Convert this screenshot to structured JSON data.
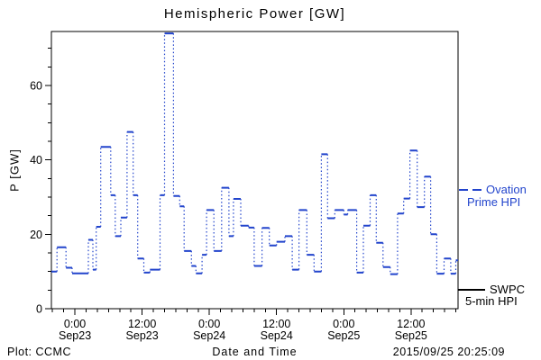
{
  "title": "Hemispheric Power [GW]",
  "colors": {
    "ovation_blue": "#2244cc",
    "swpc_black": "#000000",
    "axis": "#000000",
    "background": "#ffffff"
  },
  "legend": {
    "ovation": {
      "label_line1": "Ovation",
      "label_line2": "Prime HPI"
    },
    "swpc": {
      "label_line1": "SWPC",
      "label_line2": "5-min HPI"
    }
  },
  "footer": {
    "left": "Plot: CCMC",
    "center": "Date and Time",
    "right": "2015/09/25 20:25:09"
  },
  "chart_data": {
    "type": "line",
    "style": "step-with-dotted-connectors",
    "title": "Hemispheric Power [GW]",
    "xlabel": "Date and Time",
    "ylabel": "P [GW]",
    "ylim": [
      0,
      74.5
    ],
    "yticks": [
      0,
      20,
      40,
      60
    ],
    "ytick_labels": [
      "0",
      "20",
      "40",
      "60"
    ],
    "y_minor_step": 5,
    "x_hours_range": [
      -4.2,
      68.4
    ],
    "x_hours_origin": "Sep23 00:00",
    "x_major_ticks": [
      {
        "t": 0,
        "time": "0:00",
        "date": "Sep23"
      },
      {
        "t": 12,
        "time": "12:00",
        "date": "Sep23"
      },
      {
        "t": 24,
        "time": "0:00",
        "date": "Sep24"
      },
      {
        "t": 36,
        "time": "12:00",
        "date": "Sep24"
      },
      {
        "t": 48,
        "time": "0:00",
        "date": "Sep25"
      },
      {
        "t": 60,
        "time": "12:00",
        "date": "Sep25"
      }
    ],
    "x_minor_step": 2,
    "grid": false,
    "legend_position": "right-outside",
    "x_end": 68.4,
    "series": [
      {
        "name": "Ovation Prime HPI",
        "color": "#2244cc",
        "units": "GW",
        "steps": [
          [
            -4.2,
            10.0
          ],
          [
            -3.2,
            16.5
          ],
          [
            -1.6,
            11.0
          ],
          [
            -0.5,
            9.5
          ],
          [
            2.4,
            18.5
          ],
          [
            3.2,
            10.5
          ],
          [
            3.8,
            22.0
          ],
          [
            4.6,
            43.5
          ],
          [
            6.4,
            30.5
          ],
          [
            7.2,
            19.5
          ],
          [
            8.2,
            24.5
          ],
          [
            9.3,
            47.5
          ],
          [
            10.4,
            30.5
          ],
          [
            11.2,
            13.5
          ],
          [
            12.3,
            9.7
          ],
          [
            13.4,
            10.5
          ],
          [
            15.2,
            30.5
          ],
          [
            16.0,
            74.0
          ],
          [
            17.6,
            30.3
          ],
          [
            18.7,
            27.5
          ],
          [
            19.5,
            15.5
          ],
          [
            20.8,
            11.5
          ],
          [
            21.6,
            9.5
          ],
          [
            22.7,
            14.5
          ],
          [
            23.5,
            26.5
          ],
          [
            24.8,
            15.5
          ],
          [
            26.2,
            32.5
          ],
          [
            27.5,
            19.5
          ],
          [
            28.3,
            29.5
          ],
          [
            29.6,
            22.3
          ],
          [
            31.0,
            21.8
          ],
          [
            32.0,
            11.5
          ],
          [
            33.4,
            21.7
          ],
          [
            34.7,
            17.0
          ],
          [
            36.0,
            18.0
          ],
          [
            37.5,
            19.5
          ],
          [
            38.8,
            10.5
          ],
          [
            40.0,
            26.5
          ],
          [
            41.4,
            14.5
          ],
          [
            42.7,
            10.0
          ],
          [
            44.0,
            41.5
          ],
          [
            45.1,
            24.3
          ],
          [
            46.4,
            26.5
          ],
          [
            48.0,
            25.3
          ],
          [
            48.7,
            26.5
          ],
          [
            50.3,
            9.7
          ],
          [
            51.5,
            22.3
          ],
          [
            52.7,
            30.5
          ],
          [
            53.8,
            17.7
          ],
          [
            55.0,
            11.2
          ],
          [
            56.3,
            9.3
          ],
          [
            57.6,
            25.6
          ],
          [
            58.7,
            29.6
          ],
          [
            59.8,
            42.5
          ],
          [
            61.1,
            27.3
          ],
          [
            62.4,
            35.5
          ],
          [
            63.5,
            20.0
          ],
          [
            64.6,
            9.4
          ],
          [
            65.9,
            13.5
          ],
          [
            67.1,
            9.4
          ],
          [
            68.0,
            13.0
          ]
        ]
      },
      {
        "name": "SWPC 5-min HPI",
        "color": "#000000",
        "units": "GW",
        "steps": []
      }
    ]
  }
}
